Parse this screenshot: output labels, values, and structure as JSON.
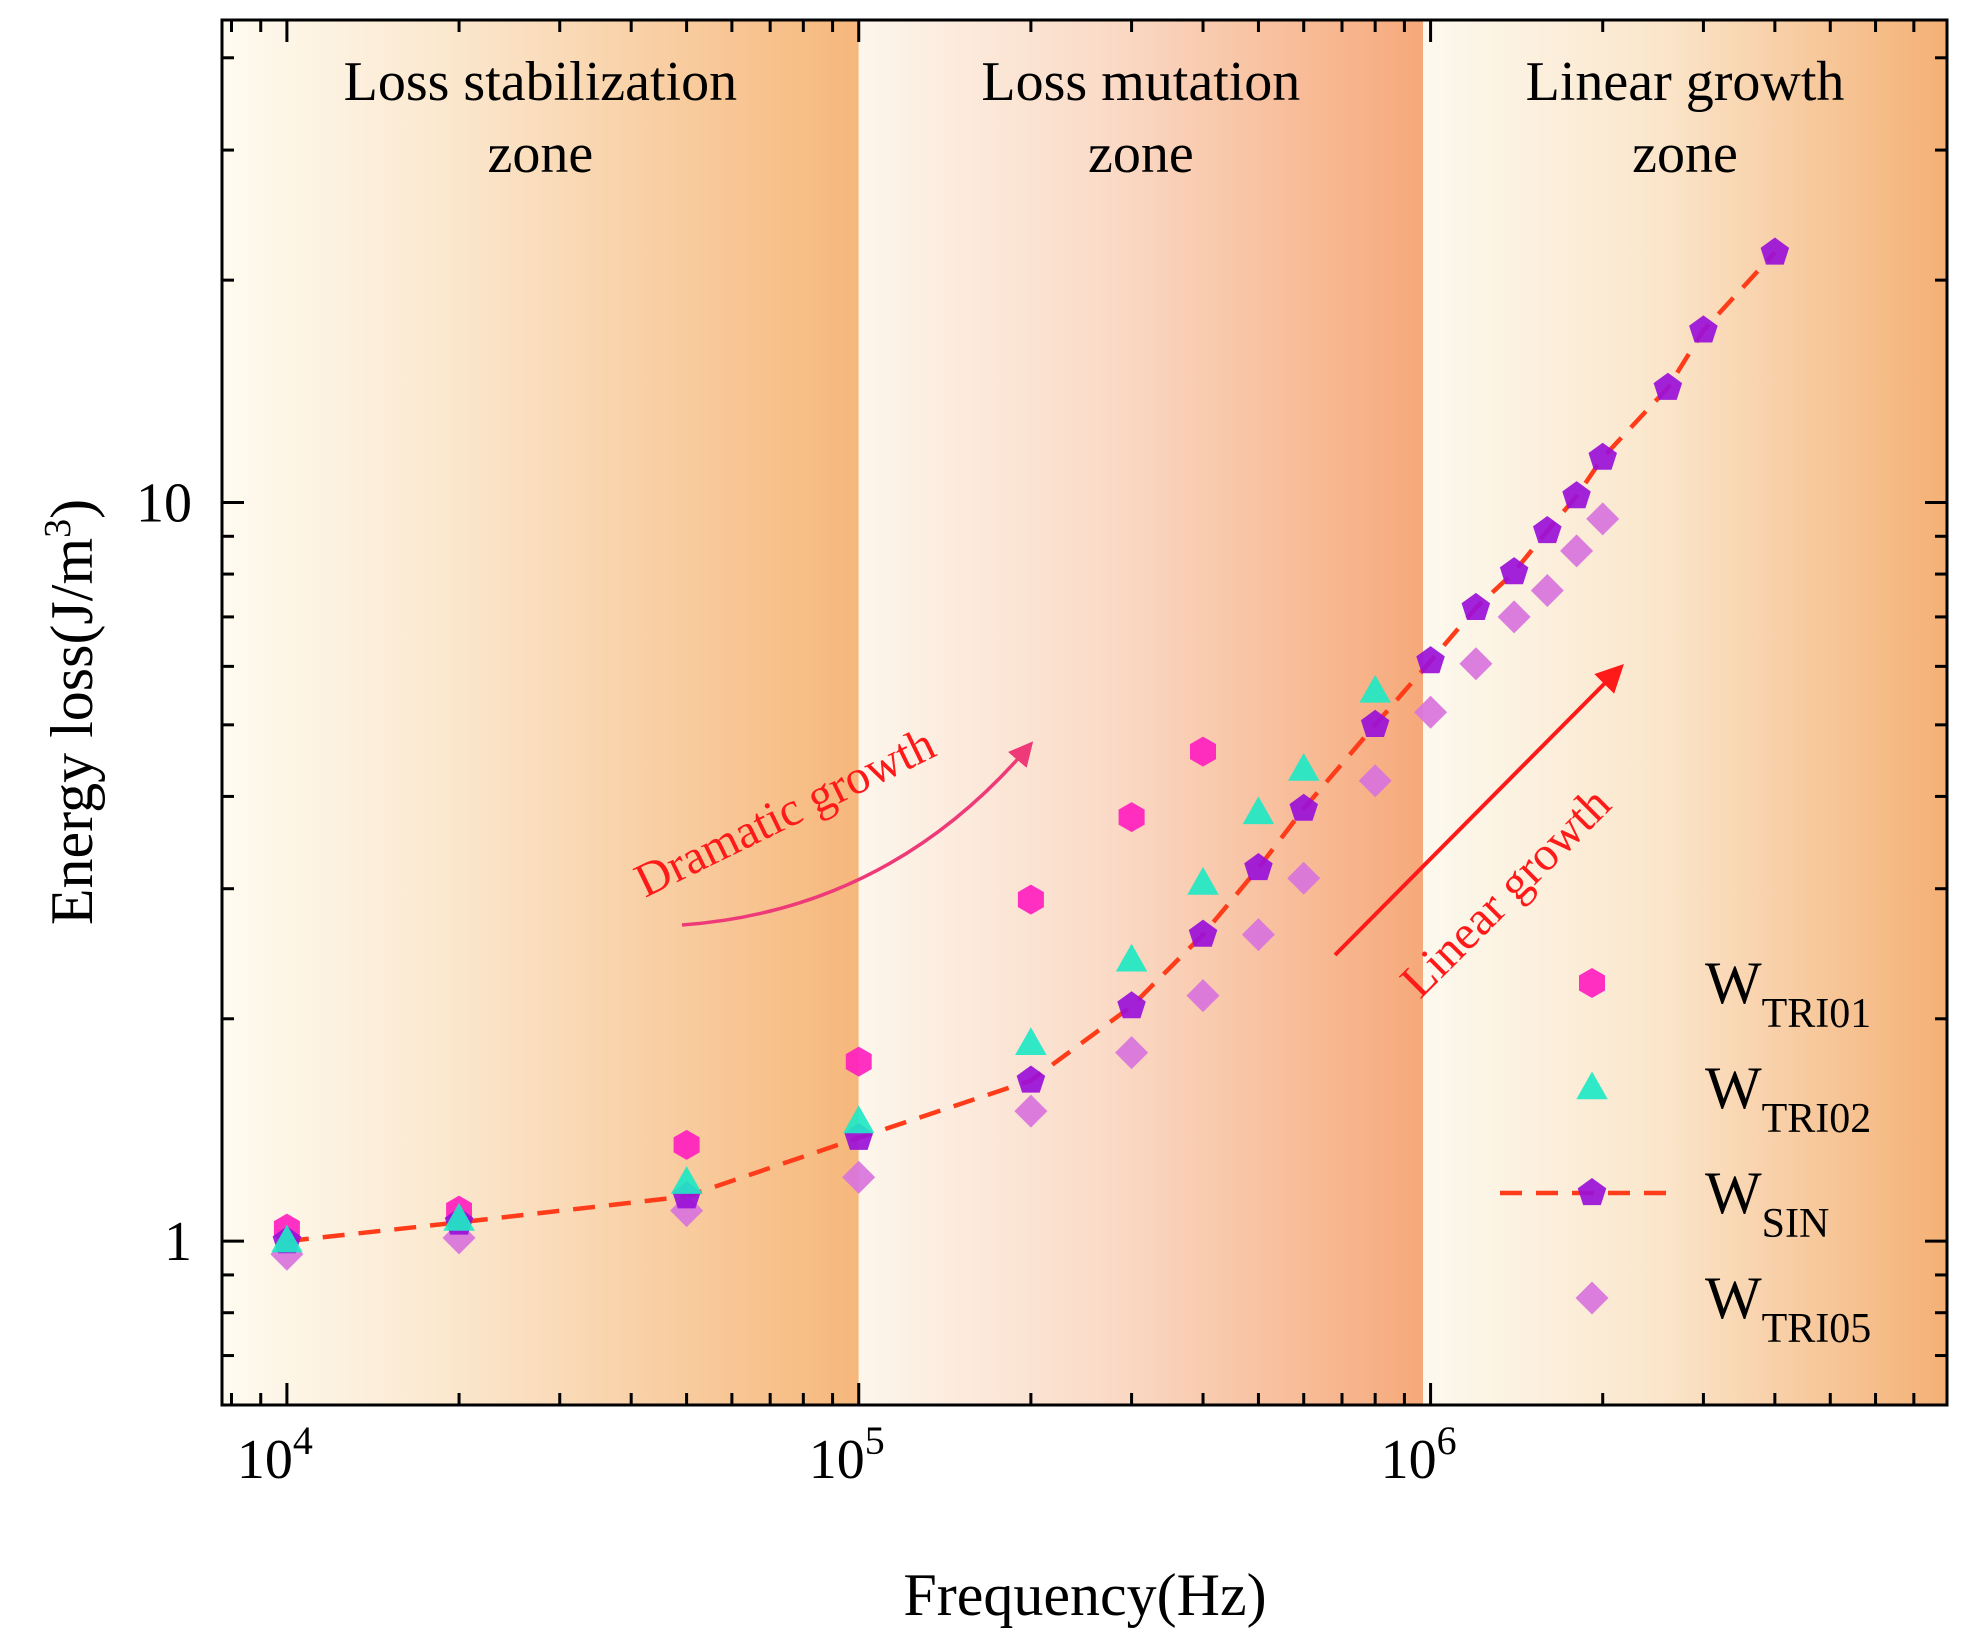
{
  "chart_data": {
    "type": "scatter",
    "title": "",
    "xlabel": "Frequency(Hz)",
    "ylabel_main": "Energy loss(J/m",
    "ylabel_sup": "3",
    "ylabel_end": ")",
    "xscale": "log",
    "yscale": "log",
    "xlim": [
      7700,
      8000000
    ],
    "ylim": [
      0.6,
      45
    ],
    "x_ticks": [
      {
        "value": 10000,
        "base": "10",
        "exp": "4"
      },
      {
        "value": 100000,
        "base": "10",
        "exp": "5"
      },
      {
        "value": 1000000,
        "base": "10",
        "exp": "6"
      }
    ],
    "y_ticks": [
      {
        "value": 1,
        "label": "1"
      },
      {
        "value": 10,
        "label": "10"
      }
    ],
    "zones": [
      {
        "line1": "Loss stabilization",
        "line2": "zone",
        "x_from": 7700,
        "x_to": 100000
      },
      {
        "line1": "Loss mutation",
        "line2": "zone",
        "x_from": 100000,
        "x_to": 970000
      },
      {
        "line1": "Linear growth",
        "line2": "zone",
        "x_from": 970000,
        "x_to": 8000000
      }
    ],
    "annotations": [
      {
        "text": "Dramatic growth",
        "color": "#ff1a1a",
        "arrow_color": "#ee3a78"
      },
      {
        "text": "Linear growth",
        "color": "#ff1a1a",
        "arrow_color": "#ff1a1a"
      }
    ],
    "series": [
      {
        "name": "W",
        "sub": "TRI01",
        "marker": "hexagon",
        "color": "#ff1fbf",
        "x": [
          10000,
          20000,
          50000,
          100000,
          200000,
          300000,
          400000
        ],
        "y": [
          1.04,
          1.1,
          1.35,
          1.75,
          2.9,
          3.75,
          4.6
        ]
      },
      {
        "name": "W",
        "sub": "TRI02",
        "marker": "triangle",
        "color": "#1ee8c4",
        "x": [
          10000,
          20000,
          50000,
          100000,
          200000,
          300000,
          400000,
          500000,
          600000,
          800000
        ],
        "y": [
          1.0,
          1.07,
          1.2,
          1.45,
          1.85,
          2.4,
          3.05,
          3.8,
          4.35,
          5.55
        ]
      },
      {
        "name": "W",
        "sub": "SIN",
        "marker": "pentagon",
        "color": "#9a10d8",
        "line_color": "#ff3c1a",
        "dashed": true,
        "x": [
          10000,
          20000,
          50000,
          100000,
          200000,
          300000,
          400000,
          500000,
          600000,
          800000,
          1000000,
          1200000,
          1400000,
          1600000,
          1800000,
          2000000,
          2600000,
          3000000,
          4000000
        ],
        "y": [
          1.0,
          1.06,
          1.15,
          1.38,
          1.65,
          2.08,
          2.6,
          3.2,
          3.85,
          5.0,
          6.1,
          7.2,
          8.05,
          9.15,
          10.2,
          11.5,
          14.3,
          17.1,
          21.8
        ]
      },
      {
        "name": "W",
        "sub": "TRI05",
        "marker": "diamond",
        "color": "#d873dc",
        "x": [
          10000,
          20000,
          50000,
          100000,
          200000,
          300000,
          400000,
          500000,
          600000,
          800000,
          1000000,
          1200000,
          1400000,
          1600000,
          1800000,
          2000000
        ],
        "y": [
          0.96,
          1.01,
          1.1,
          1.22,
          1.5,
          1.8,
          2.15,
          2.6,
          3.1,
          4.2,
          5.2,
          6.05,
          7.0,
          7.6,
          8.6,
          9.5
        ]
      }
    ],
    "legend": {
      "position": "bottom-right"
    }
  }
}
